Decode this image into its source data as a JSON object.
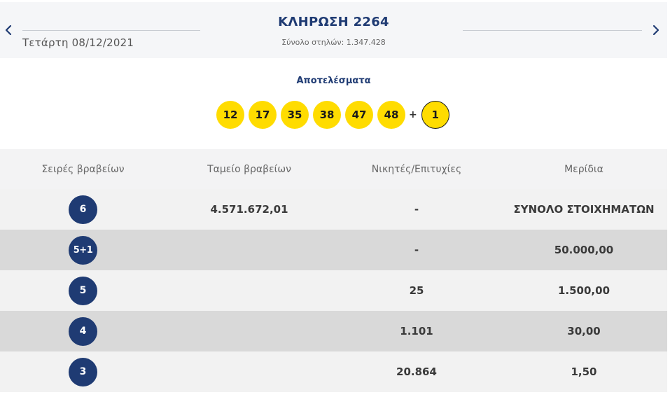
{
  "header": {
    "date": "Τετάρτη 08/12/2021",
    "draw_title": "ΚΛΗΡΩΣΗ 2264",
    "columns_total": "Σύνολο στηλών: 1.347.428",
    "prev_icon": "chevron-left-icon",
    "next_icon": "chevron-right-icon"
  },
  "results": {
    "title": "Αποτελέσματα",
    "numbers": [
      "12",
      "17",
      "35",
      "38",
      "47",
      "48"
    ],
    "plus": "+",
    "bonus": "1"
  },
  "colors": {
    "navy": "#1f3b73",
    "ball_yellow": "#ffdc00",
    "row_light": "#f2f2f2",
    "row_dark": "#d9d9d9"
  },
  "table": {
    "headers": [
      "Σειρές βραβείων",
      "Ταμείο βραβείων",
      "Νικητές/Επιτυχίες",
      "Μερίδια"
    ],
    "rows": [
      {
        "category": "6",
        "fund": "4.571.672,01",
        "winners": "-",
        "share": "ΣΥΝΟΛΟ ΣΤΟΙΧΗΜΑΤΩΝ"
      },
      {
        "category": "5+1",
        "fund": "",
        "winners": "-",
        "share": "50.000,00"
      },
      {
        "category": "5",
        "fund": "",
        "winners": "25",
        "share": "1.500,00"
      },
      {
        "category": "4",
        "fund": "",
        "winners": "1.101",
        "share": "30,00"
      },
      {
        "category": "3",
        "fund": "",
        "winners": "20.864",
        "share": "1,50"
      }
    ]
  }
}
